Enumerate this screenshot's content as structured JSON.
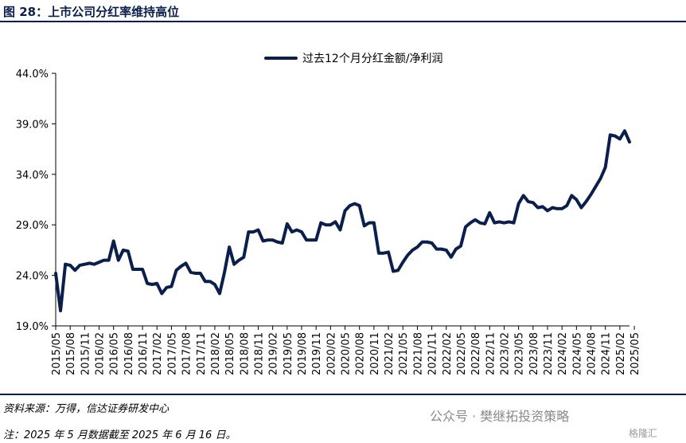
{
  "figure": {
    "title": "图 28：上市公司分红率维持高位",
    "source": "资料来源：万得，信达证券研发中心",
    "note": "注：2025 年 5 月数据截至 2025 年 6 月 16 日。",
    "watermark": "公众号 · 樊继拓投资策略",
    "watermark_logo_text": "格隆汇"
  },
  "colors": {
    "series": "#0b1f4d",
    "title": "#0b1f4d",
    "axis": "#000000"
  },
  "chart_data": {
    "type": "line",
    "title": "",
    "xlabel": "",
    "ylabel": "",
    "ylim": [
      19.0,
      44.0
    ],
    "yticks": [
      "19.0%",
      "24.0%",
      "29.0%",
      "34.0%",
      "39.0%",
      "44.0%"
    ],
    "ytick_values": [
      19.0,
      24.0,
      29.0,
      34.0,
      39.0,
      44.0
    ],
    "xticks": [
      "2015/05",
      "2015/08",
      "2015/11",
      "2016/02",
      "2016/05",
      "2016/08",
      "2016/11",
      "2017/02",
      "2017/05",
      "2017/08",
      "2017/11",
      "2018/02",
      "2018/05",
      "2018/08",
      "2018/11",
      "2019/02",
      "2019/05",
      "2019/08",
      "2019/11",
      "2020/02",
      "2020/05",
      "2020/08",
      "2020/11",
      "2021/02",
      "2021/05",
      "2021/08",
      "2021/11",
      "2022/02",
      "2022/05",
      "2022/08",
      "2022/11",
      "2023/02",
      "2023/05",
      "2023/08",
      "2023/11",
      "2024/02",
      "2024/05",
      "2024/08",
      "2024/11",
      "2025/02",
      "2025/05"
    ],
    "grid": false,
    "legend_position": "top-center",
    "series": [
      {
        "name": "过去12个月分红金额/净利润",
        "values": [
          24.2,
          20.5,
          25.1,
          25.0,
          24.5,
          25.0,
          25.1,
          25.2,
          25.1,
          25.3,
          25.5,
          25.5,
          27.4,
          25.5,
          26.5,
          26.4,
          24.6,
          24.6,
          24.6,
          23.2,
          23.1,
          23.2,
          22.2,
          22.8,
          22.9,
          24.5,
          24.9,
          25.2,
          24.3,
          24.2,
          24.2,
          23.4,
          23.4,
          23.1,
          22.2,
          24.3,
          26.8,
          25.1,
          25.5,
          25.8,
          28.3,
          28.3,
          28.5,
          27.4,
          27.5,
          27.5,
          27.3,
          27.2,
          29.1,
          28.3,
          28.5,
          28.3,
          27.5,
          27.5,
          27.5,
          29.2,
          29.0,
          29.0,
          29.3,
          28.5,
          30.4,
          30.9,
          31.1,
          30.9,
          28.9,
          29.2,
          29.2,
          26.2,
          26.2,
          26.3,
          24.4,
          24.5,
          25.3,
          26.0,
          26.5,
          26.8,
          27.3,
          27.3,
          27.2,
          26.6,
          26.6,
          26.5,
          25.8,
          26.6,
          26.9,
          28.8,
          29.2,
          29.5,
          29.2,
          29.1,
          30.2,
          29.2,
          29.3,
          29.2,
          29.3,
          29.2,
          31.1,
          31.9,
          31.3,
          31.2,
          30.7,
          30.8,
          30.4,
          30.7,
          30.6,
          30.6,
          30.9,
          31.9,
          31.5,
          30.7,
          31.3,
          32.0,
          32.8,
          33.6,
          34.7,
          37.9,
          37.8,
          37.5,
          38.3,
          37.2
        ]
      }
    ]
  }
}
